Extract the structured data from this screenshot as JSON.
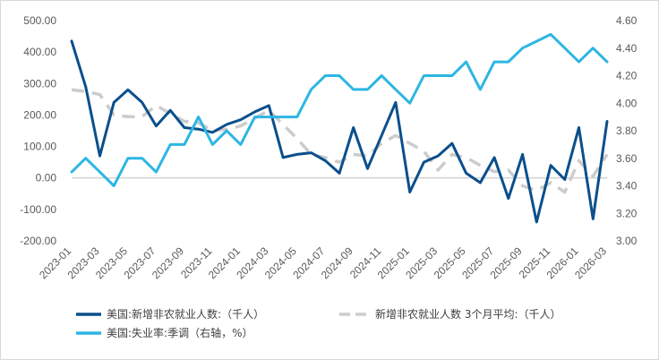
{
  "chart_data": {
    "type": "line",
    "x": [
      "2023-01",
      "2023-02",
      "2023-03",
      "2023-04",
      "2023-05",
      "2023-06",
      "2023-07",
      "2023-08",
      "2023-09",
      "2023-10",
      "2023-11",
      "2023-12",
      "2024-01",
      "2024-02",
      "2024-03",
      "2024-04",
      "2024-05",
      "2024-06",
      "2024-07",
      "2024-08",
      "2024-09",
      "2024-10",
      "2024-11",
      "2024-12",
      "2025-01",
      "2025-02",
      "2025-03",
      "2025-04",
      "2025-05",
      "2025-06",
      "2025-07",
      "2025-08",
      "2025-09",
      "2025-10",
      "2025-11",
      "2025-12",
      "2026-01",
      "2026-02",
      "2026-03"
    ],
    "x_tick_labels": [
      "2023-01",
      "2023-03",
      "2023-05",
      "2023-07",
      "2023-09",
      "2023-11",
      "2024-01",
      "2024-03",
      "2024-05",
      "2024-07",
      "2024-09",
      "2024-11",
      "2025-01",
      "2025-03",
      "2025-05",
      "2025-07",
      "2025-09",
      "2025-11",
      "2026-01",
      "2026-03"
    ],
    "y_left": {
      "ylim": [
        -200,
        500
      ],
      "ticks": [
        "-200.00",
        "-100.00",
        "0.00",
        "100.00",
        "200.00",
        "300.00",
        "400.00",
        "500.00"
      ]
    },
    "y_right": {
      "ylim": [
        3.0,
        4.6
      ],
      "ticks": [
        "3.00",
        "3.20",
        "3.40",
        "3.60",
        "3.80",
        "4.00",
        "4.20",
        "4.40",
        "4.60"
      ]
    },
    "series": [
      {
        "name": "美国:新增非农就业人数:（千人）",
        "axis": "left",
        "color": "#0b4f8c",
        "style": "solid",
        "values": [
          435,
          290,
          70,
          240,
          280,
          240,
          165,
          215,
          160,
          155,
          145,
          170,
          185,
          210,
          230,
          65,
          75,
          80,
          55,
          15,
          160,
          30,
          135,
          240,
          -45,
          50,
          70,
          110,
          15,
          -15,
          65,
          -65,
          75,
          -140,
          40,
          -5,
          160,
          -130,
          180
        ]
      },
      {
        "name": "新增非农就业人数 3个月平均:（千人）",
        "axis": "left",
        "color": "#cccccc",
        "style": "dashed",
        "values": [
          280,
          275,
          265,
          200,
          195,
          195,
          230,
          205,
          180,
          175,
          150,
          155,
          165,
          190,
          215,
          170,
          125,
          75,
          65,
          50,
          75,
          70,
          110,
          135,
          110,
          85,
          25,
          75,
          65,
          40,
          20,
          25,
          -25,
          -40,
          -15,
          -45,
          55,
          5,
          75
        ]
      },
      {
        "name": "美国:失业率:季调（右轴，%）",
        "axis": "right",
        "color": "#2db6e3",
        "style": "solid",
        "values": [
          3.5,
          3.6,
          3.5,
          3.4,
          3.6,
          3.6,
          3.5,
          3.7,
          3.7,
          3.9,
          3.7,
          3.8,
          3.7,
          3.9,
          3.9,
          3.9,
          3.9,
          4.1,
          4.2,
          4.2,
          4.1,
          4.1,
          4.2,
          4.1,
          4.0,
          4.2,
          4.2,
          4.2,
          4.3,
          4.1,
          4.3,
          4.3,
          4.4,
          4.45,
          4.5,
          4.4,
          4.3,
          4.4,
          4.3
        ]
      }
    ],
    "legend": "bottom",
    "grid": false
  }
}
